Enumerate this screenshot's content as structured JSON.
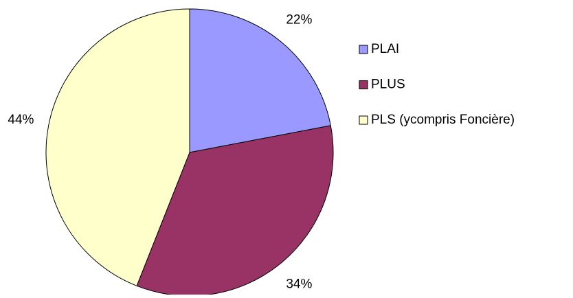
{
  "chart_data": {
    "type": "pie",
    "categories": [
      "PLAI",
      "PLUS",
      "PLS (ycompris Foncière)"
    ],
    "values": [
      22,
      34,
      44
    ],
    "value_labels": [
      "22%",
      "34%",
      "44%"
    ],
    "colors": [
      "#9999ff",
      "#993366",
      "#ffffcc"
    ],
    "legend": "right"
  }
}
